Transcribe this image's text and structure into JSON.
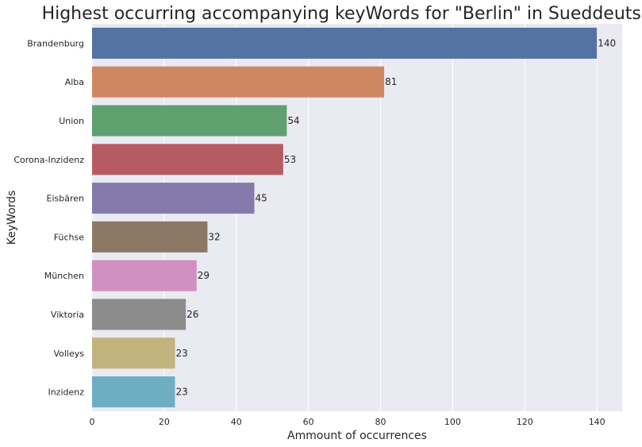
{
  "chart_data": {
    "type": "bar",
    "orientation": "horizontal",
    "title": "Highest occurring accompanying keyWords for \"Berlin\" in Sueddeutsche",
    "xlabel": "Ammount of occurrences",
    "ylabel": "KeyWords",
    "categories": [
      "Brandenburg",
      "Alba",
      "Union",
      "Corona-Inzidenz",
      "Eisbären",
      "Füchse",
      "München",
      "Viktoria",
      "Volleys",
      "Inzidenz"
    ],
    "values": [
      140,
      81,
      54,
      53,
      45,
      32,
      29,
      26,
      23,
      23
    ],
    "data_labels": [
      "140",
      "81",
      "54",
      "53",
      "45",
      "32",
      "29",
      "26",
      "23",
      "23"
    ],
    "xlim": [
      0,
      147
    ],
    "xticks": [
      0,
      20,
      40,
      60,
      80,
      100,
      120,
      140
    ],
    "xtick_labels": [
      "0",
      "20",
      "40",
      "60",
      "80",
      "100",
      "120",
      "140"
    ],
    "grid": true,
    "colors": [
      "#5572a4",
      "#cf8762",
      "#5fa06f",
      "#b75b62",
      "#857aab",
      "#8d7866",
      "#d090c0",
      "#8c8c8c",
      "#c2b47d",
      "#6daec2"
    ],
    "background": "#eaeaf2"
  }
}
